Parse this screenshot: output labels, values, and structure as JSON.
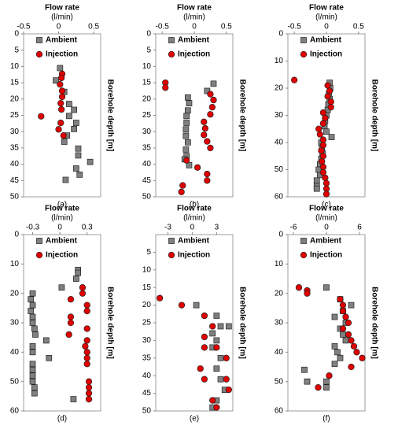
{
  "chart_data": [
    {
      "type": "scatter",
      "title": "Flow rate",
      "subtitle": "(l/min)",
      "y_label": "Borehole depth [m]",
      "caption": "(a)",
      "xlim": [
        -0.5,
        0.6
      ],
      "xticks": [
        -0.5,
        0,
        0.5
      ],
      "ylim": [
        0,
        50
      ],
      "yticks": [
        0,
        5,
        10,
        15,
        20,
        25,
        30,
        35,
        40,
        45,
        50
      ],
      "y_inverted": true,
      "legend": "upper left",
      "series": [
        {
          "name": "Ambient",
          "color": "#808080",
          "marker": "square",
          "x": [
            0.02,
            -0.04,
            0.08,
            0.15,
            0.22,
            0.15,
            0.25,
            0.22,
            0.12,
            0.08,
            0.28,
            0.28,
            0.45,
            0.25,
            0.3,
            0.1
          ],
          "values": [
            10.5,
            14.3,
            17.8,
            21.5,
            23.3,
            25.2,
            27.3,
            29.2,
            31.2,
            33.1,
            35.2,
            37.3,
            39.3,
            41.3,
            43.2,
            44.8
          ]
        },
        {
          "name": "Injection",
          "color": "#e00000",
          "marker": "circle",
          "x": [
            0.05,
            0.04,
            0.02,
            0.05,
            0.05,
            0.03,
            0.04,
            -0.25,
            0.03,
            0.0,
            0.07
          ],
          "values": [
            12.3,
            13.5,
            15.5,
            17.5,
            19.3,
            21.3,
            23.2,
            25.3,
            27.3,
            29.3,
            31.2
          ]
        }
      ]
    },
    {
      "type": "scatter",
      "title": "Flow rate",
      "subtitle": "(l/min)",
      "y_label": "Borehole depth [m]",
      "caption": "(b)",
      "xlim": [
        -0.6,
        0.6
      ],
      "xticks": [
        -0.5,
        0,
        0.5
      ],
      "ylim": [
        0,
        50
      ],
      "yticks": [
        0,
        5,
        10,
        15,
        20,
        25,
        30,
        35,
        40,
        45,
        50
      ],
      "y_inverted": true,
      "legend": "upper left",
      "series": [
        {
          "name": "Ambient",
          "color": "#808080",
          "marker": "square",
          "x": [
            0.3,
            0.2,
            -0.1,
            -0.08,
            -0.1,
            -0.12,
            -0.12,
            -0.13,
            -0.13,
            -0.1,
            -0.13,
            -0.12,
            -0.15,
            -0.08
          ],
          "values": [
            15.3,
            17.5,
            19.5,
            21.3,
            23.5,
            25.2,
            27.3,
            29.3,
            31.3,
            33.3,
            35.5,
            37.5,
            38.5,
            40.3
          ]
        },
        {
          "name": "Injection",
          "color": "#e00000",
          "marker": "circle",
          "x": [
            -0.45,
            -0.45,
            0.25,
            0.3,
            0.28,
            0.25,
            0.15,
            0.17,
            0.15,
            0.2,
            0.25,
            -0.12,
            0.05,
            0.2,
            0.2,
            -0.18,
            -0.2
          ],
          "values": [
            15,
            16.5,
            18.5,
            20.3,
            22.5,
            24.7,
            27,
            29,
            31,
            33,
            35,
            38.8,
            41,
            43,
            45,
            46.5,
            48.5
          ]
        }
      ]
    },
    {
      "type": "scatter",
      "title": "Flow rate",
      "subtitle": "(l/min)",
      "y_label": "Borehole depth [m]",
      "caption": "(c)",
      "xlim": [
        -0.6,
        0.6
      ],
      "xticks": [
        -0.5,
        0,
        0.5
      ],
      "ylim": [
        0,
        60
      ],
      "yticks": [
        0,
        10,
        20,
        30,
        40,
        50,
        60
      ],
      "y_inverted": true,
      "legend": "upper left",
      "series": [
        {
          "name": "Ambient",
          "color": "#808080",
          "marker": "square",
          "x": [
            0.05,
            0.06,
            0.04,
            0.05,
            0.03,
            0.02,
            0.0,
            -0.02,
            -0.03,
            0.0,
            0.08,
            -0.08,
            -0.07,
            -0.06,
            -0.08,
            -0.1,
            -0.12,
            -0.1,
            -0.15,
            -0.15,
            -0.15
          ],
          "values": [
            18,
            20,
            22,
            24,
            26,
            28,
            30,
            32,
            34,
            36,
            38,
            40,
            42,
            44,
            46,
            48,
            50,
            52,
            54,
            56,
            57
          ]
        },
        {
          "name": "Injection",
          "color": "#e00000",
          "marker": "circle",
          "x": [
            -0.5,
            0.02,
            0.05,
            0.02,
            0.07,
            0.07,
            -0.05,
            -0.02,
            -0.05,
            -0.12,
            -0.1,
            -0.05,
            -0.05,
            -0.08,
            -0.05,
            -0.07,
            -0.05,
            -0.05,
            -0.02,
            0.0,
            0.0,
            0.0
          ],
          "values": [
            17,
            19,
            21,
            23,
            25,
            27,
            29,
            31,
            33,
            35,
            37,
            39,
            41,
            43,
            45,
            47,
            49,
            51,
            53,
            55,
            57,
            59
          ]
        }
      ]
    },
    {
      "type": "scatter",
      "title": "Flow rate",
      "subtitle": "(l/min)",
      "y_label": "Borehole depth [m]",
      "caption": "(d)",
      "xlim": [
        -0.4,
        0.45
      ],
      "xticks": [
        -0.3,
        0,
        0.3
      ],
      "ylim": [
        0,
        60
      ],
      "yticks": [
        0,
        10,
        20,
        30,
        40,
        50,
        60
      ],
      "y_inverted": true,
      "legend": "upper left",
      "series": [
        {
          "name": "Ambient",
          "color": "#808080",
          "marker": "square",
          "x": [
            0.2,
            0.2,
            0.18,
            0.02,
            -0.3,
            -0.32,
            -0.3,
            -0.32,
            -0.3,
            -0.3,
            -0.28,
            -0.27,
            -0.15,
            -0.3,
            -0.3,
            -0.12,
            -0.3,
            -0.3,
            -0.3,
            -0.3,
            -0.28,
            -0.28,
            0.15
          ],
          "values": [
            12,
            13,
            15,
            18,
            20,
            22,
            24,
            26,
            28,
            30,
            32,
            34,
            36,
            38,
            40,
            42,
            44,
            46,
            48,
            50,
            52,
            54,
            56
          ]
        },
        {
          "name": "Injection",
          "color": "#e00000",
          "marker": "circle",
          "x": [
            0.25,
            0.25,
            0.12,
            0.3,
            0.3,
            0.12,
            0.12,
            0.3,
            0.1,
            0.3,
            0.28,
            0.3,
            0.3,
            0.3,
            0.32,
            0.32,
            0.32,
            0.32
          ],
          "values": [
            18,
            20,
            22,
            24,
            26,
            28,
            30,
            32,
            34,
            36,
            38,
            40,
            42,
            44,
            50,
            52,
            54,
            56
          ]
        }
      ]
    },
    {
      "type": "scatter",
      "title": "Flow rate",
      "subtitle": "(l/min)",
      "y_label": "Borehole depth [m]",
      "caption": "(e)",
      "xlim": [
        -4.5,
        5
      ],
      "xticks": [
        -3,
        0,
        3
      ],
      "ylim": [
        0,
        50
      ],
      "yticks": [
        5,
        10,
        15,
        20,
        25,
        30,
        35,
        40,
        45,
        50
      ],
      "y_inverted": true,
      "legend": "upper left",
      "series": [
        {
          "name": "Ambient",
          "color": "#808080",
          "marker": "square",
          "x": [
            0.5,
            3,
            4.5,
            3.5,
            2.5,
            3,
            2.5,
            3.5,
            3,
            3.5,
            4,
            3,
            2.5
          ],
          "values": [
            20,
            23,
            26,
            26,
            28,
            30,
            32,
            35,
            38,
            41,
            44,
            47,
            49
          ]
        },
        {
          "name": "Injection",
          "color": "#e00000",
          "marker": "circle",
          "x": [
            -4,
            -1.3,
            1.5,
            2.5,
            1.5,
            1.5,
            3,
            4.2,
            1,
            1.5,
            4.2,
            4.5,
            2.5,
            3
          ],
          "values": [
            18,
            20,
            23,
            26,
            29,
            32,
            32,
            35,
            38,
            41,
            41,
            44,
            47,
            49
          ]
        }
      ]
    },
    {
      "type": "scatter",
      "title": "Flow rate",
      "subtitle": "(l/min)",
      "y_label": "Borehole depth [m]",
      "caption": "(f)",
      "xlim": [
        -7,
        7
      ],
      "xticks": [
        -6,
        0,
        6
      ],
      "ylim": [
        0,
        60
      ],
      "yticks": [
        0,
        10,
        20,
        30,
        40,
        50,
        60
      ],
      "y_inverted": true,
      "legend": "upper left",
      "series": [
        {
          "name": "Ambient",
          "color": "#808080",
          "marker": "square",
          "x": [
            0,
            2.5,
            4.5,
            3,
            1.5,
            3.5,
            2.5,
            3,
            3.5,
            1.5,
            2,
            2.5,
            1.5,
            -4,
            -3.5,
            0,
            0
          ],
          "values": [
            18,
            22,
            24,
            26,
            28,
            30,
            32,
            34,
            36,
            38,
            40,
            42,
            44,
            46,
            50,
            50,
            52
          ]
        },
        {
          "name": "Injection",
          "color": "#e00000",
          "marker": "circle",
          "x": [
            -5,
            -3.5,
            -3.5,
            2.5,
            3,
            3,
            3.5,
            4,
            3,
            4,
            4.5,
            5,
            5.5,
            6.5,
            4.5,
            0.5,
            -1.5
          ],
          "values": [
            18,
            19,
            20,
            22,
            24,
            26,
            28,
            30,
            32,
            34,
            36,
            38,
            40,
            42,
            45,
            48,
            52
          ]
        }
      ]
    }
  ]
}
